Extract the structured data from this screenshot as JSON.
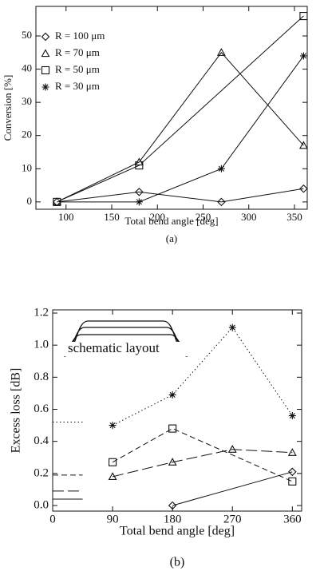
{
  "chart_data": [
    {
      "type": "line",
      "caption": "(a)",
      "x_label": "Total bend angle [deg]",
      "y_label": "Conversion [%]",
      "xlim": [
        67,
        364
      ],
      "xticks": [
        100,
        150,
        200,
        250,
        300,
        350
      ],
      "ylim": [
        -2.2,
        58.9
      ],
      "yticks": [
        0,
        10,
        20,
        30,
        40,
        50
      ],
      "legend": "upper left",
      "series": [
        {
          "name": "R = 100 μm",
          "marker": "diamond",
          "dash": "solid",
          "x": [
            90,
            180,
            270,
            360
          ],
          "values": [
            0,
            3,
            0,
            4
          ]
        },
        {
          "name": "R = 70 μm",
          "marker": "triangle",
          "dash": "solid",
          "x": [
            90,
            180,
            270,
            360
          ],
          "values": [
            0,
            12,
            45,
            17
          ]
        },
        {
          "name": "R = 50 μm",
          "marker": "square",
          "dash": "solid",
          "x": [
            90,
            180,
            360
          ],
          "values": [
            0,
            11,
            56
          ]
        },
        {
          "name": "R = 30 μm",
          "marker": "star",
          "dash": "solid",
          "x": [
            90,
            180,
            270,
            360
          ],
          "values": [
            0,
            0,
            10,
            44
          ]
        }
      ]
    },
    {
      "type": "line",
      "caption": "(b)",
      "x_label": "Total bend angle [deg]",
      "y_label": "Excess loss [dB]",
      "inset_label": "schematic layout",
      "xlim": [
        0,
        374
      ],
      "xticks": [
        0,
        90,
        180,
        270,
        360
      ],
      "ylim": [
        -0.035,
        1.22
      ],
      "yticks": [
        {
          "value": 0,
          "label": "0.0"
        },
        {
          "value": 0.2,
          "label": "0.2"
        },
        {
          "value": 0.4,
          "label": "0.4"
        },
        {
          "value": 0.6,
          "label": "0.6"
        },
        {
          "value": 0.8,
          "label": "0.8"
        },
        {
          "value": 1.0,
          "label": "1.0"
        },
        {
          "value": 1.2,
          "label": "1.2"
        }
      ],
      "series": [
        {
          "marker": "star",
          "dash": "dotted",
          "x": [
            90,
            180,
            270,
            360
          ],
          "values": [
            0.5,
            0.69,
            1.11,
            0.56
          ],
          "reference": {
            "x": [
              0,
              45
            ],
            "value": 0.52
          }
        },
        {
          "marker": "square",
          "dash": "dashed",
          "x": [
            90,
            180,
            360
          ],
          "values": [
            0.27,
            0.48,
            0.15
          ],
          "reference": {
            "x": [
              0,
              45
            ],
            "value": 0.19
          }
        },
        {
          "marker": "triangle",
          "dash": "longdash",
          "x": [
            90,
            180,
            270,
            360
          ],
          "values": [
            0.18,
            0.27,
            0.35,
            0.33
          ],
          "reference": {
            "x": [
              0,
              45
            ],
            "value": 0.09
          }
        },
        {
          "marker": "diamond",
          "dash": "solid",
          "x": [
            180,
            360
          ],
          "values": [
            0.0,
            0.21
          ],
          "reference": {
            "x": [
              0,
              45
            ],
            "value": 0.04
          }
        }
      ]
    }
  ]
}
